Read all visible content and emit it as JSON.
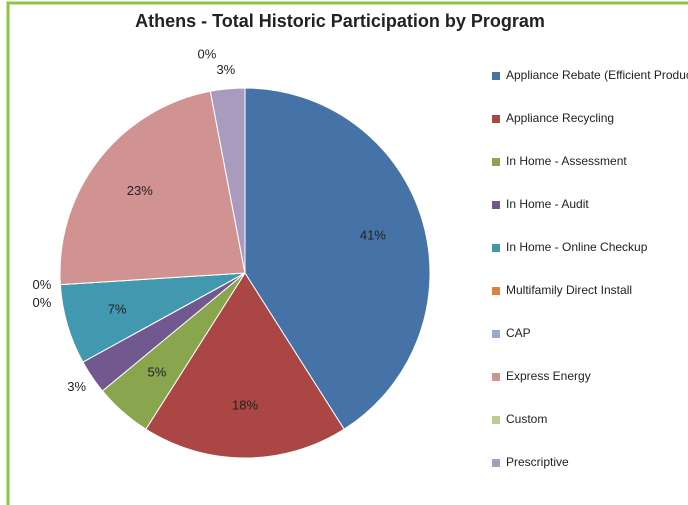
{
  "chart_data": {
    "type": "pie",
    "title": "Athens - Total Historic Participation by Program",
    "categories": [
      "Appliance Rebate (Efficient Products)",
      "Appliance Recycling",
      "In Home - Assessment",
      "In Home - Audit",
      "In Home - Online Checkup",
      "Multifamily Direct Install",
      "CAP",
      "Express Energy",
      "Custom",
      "Prescriptive"
    ],
    "values": [
      41,
      18,
      5,
      3,
      7,
      0,
      0,
      23,
      0,
      3
    ],
    "value_labels": [
      "41%",
      "18%",
      "5%",
      "3%",
      "7%",
      "0%",
      "0%",
      "23%",
      "0%",
      "3%"
    ],
    "colors": [
      "#4572A7",
      "#AA4643",
      "#89A54E",
      "#71588F",
      "#4198AF",
      "#DB843D",
      "#93A9CF",
      "#D19392",
      "#B9CD96",
      "#A99BBD"
    ],
    "legend": "right"
  }
}
